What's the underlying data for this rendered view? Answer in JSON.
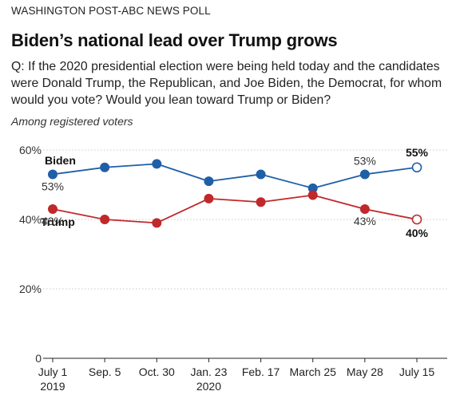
{
  "header": {
    "kicker": "WASHINGTON POST-ABC NEWS POLL",
    "title": "Biden’s national lead over Trump grows",
    "question": "Q: If the 2020 presidential election were being held today and the candidates were Donald Trump, the Republican, and Joe Biden, the Democrat, for whom would you vote?  Would you lean toward Trump or Biden?",
    "note": "Among registered voters"
  },
  "chart_data": {
    "type": "line",
    "x": [
      "July 1",
      "Sep. 5",
      "Oct. 30",
      "Jan. 23",
      "Feb. 17",
      "March 25",
      "May 28",
      "July 15"
    ],
    "x_sublabels": [
      "2019",
      "",
      "",
      "2020",
      "",
      "",
      "",
      ""
    ],
    "series": [
      {
        "name": "Biden",
        "color": "#1f5fa8",
        "values": [
          53,
          55,
          56,
          51,
          53,
          49,
          53,
          55
        ],
        "labels": [
          {
            "index": 0,
            "text": "53%"
          },
          {
            "index": 6,
            "text": "53%"
          },
          {
            "index": 7,
            "text": "55%"
          }
        ]
      },
      {
        "name": "Trump",
        "color": "#c0282b",
        "values": [
          43,
          40,
          39,
          46,
          45,
          47,
          43,
          40
        ],
        "labels": [
          {
            "index": 0,
            "text": "43%"
          },
          {
            "index": 6,
            "text": "43%"
          },
          {
            "index": 7,
            "text": "40%"
          }
        ]
      }
    ],
    "yticks": [
      "0",
      "20%",
      "40%",
      "60%"
    ],
    "ytick_values": [
      0,
      20,
      40,
      60
    ],
    "ylim": [
      0,
      60
    ],
    "grid": true,
    "last_point_hollow": true
  }
}
